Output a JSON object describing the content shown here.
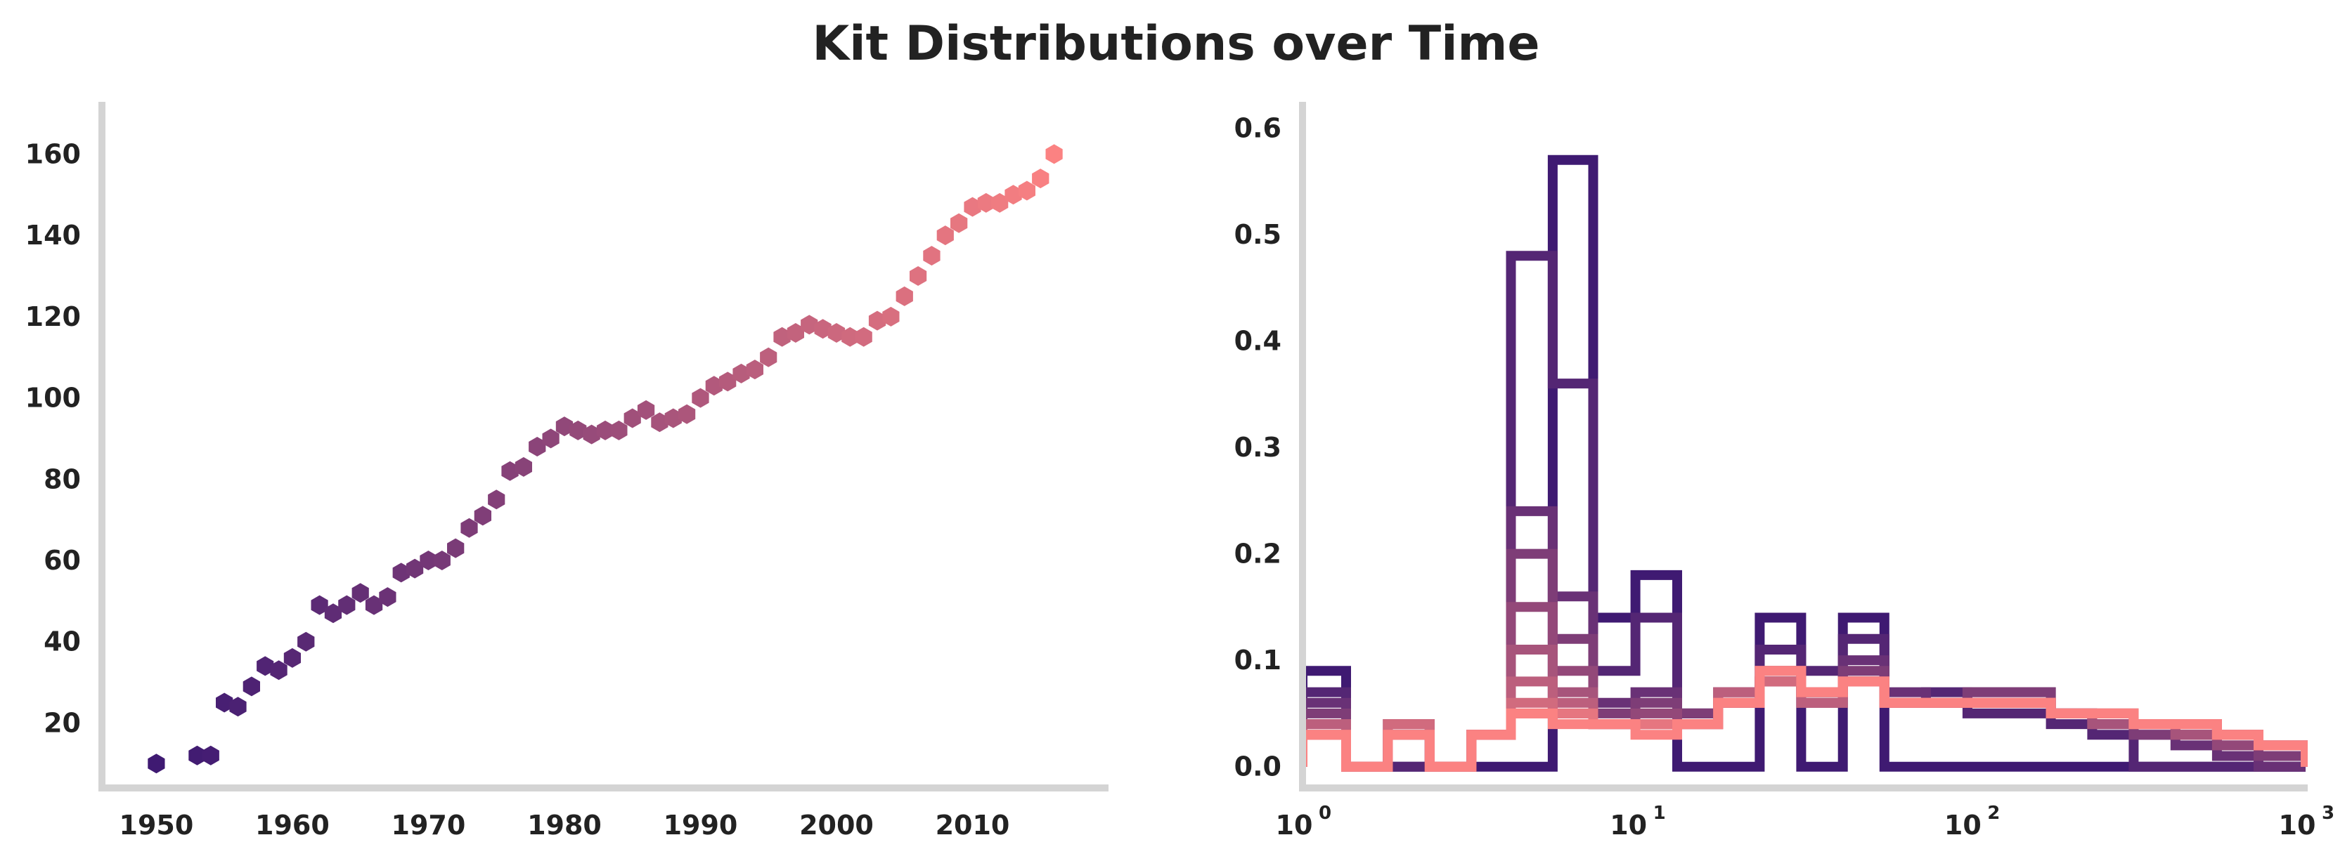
{
  "figure": {
    "title": "Kit Distributions over Time"
  },
  "colors": {
    "axis": "#d4d4d4",
    "text": "#222222",
    "start": "#3f1a72",
    "end": "#fb8282"
  },
  "chart_data": [
    {
      "type": "scatter",
      "title": "",
      "xlabel": "",
      "ylabel": "",
      "marker": "hexagon",
      "color_map": "time (purple to salmon)",
      "xlim": [
        1946,
        2020
      ],
      "ylim": [
        4,
        172
      ],
      "xticks": [
        1950,
        1960,
        1970,
        1980,
        1990,
        2000,
        2010
      ],
      "xtick_labels": [
        "1950",
        "1960",
        "1970",
        "1980",
        "1990",
        "2000",
        "2010"
      ],
      "yticks": [
        20,
        40,
        60,
        80,
        100,
        120,
        140,
        160
      ],
      "ytick_labels": [
        "20",
        "40",
        "60",
        "80",
        "100",
        "120",
        "140",
        "160"
      ],
      "grid": false,
      "legend": "none",
      "points": [
        {
          "x": 1950,
          "y": 10
        },
        {
          "x": 1953,
          "y": 12
        },
        {
          "x": 1954,
          "y": 12
        },
        {
          "x": 1955,
          "y": 25
        },
        {
          "x": 1956,
          "y": 24
        },
        {
          "x": 1957,
          "y": 29
        },
        {
          "x": 1958,
          "y": 34
        },
        {
          "x": 1959,
          "y": 33
        },
        {
          "x": 1960,
          "y": 36
        },
        {
          "x": 1961,
          "y": 40
        },
        {
          "x": 1962,
          "y": 49
        },
        {
          "x": 1963,
          "y": 47
        },
        {
          "x": 1964,
          "y": 49
        },
        {
          "x": 1965,
          "y": 52
        },
        {
          "x": 1966,
          "y": 49
        },
        {
          "x": 1967,
          "y": 51
        },
        {
          "x": 1968,
          "y": 57
        },
        {
          "x": 1969,
          "y": 58
        },
        {
          "x": 1970,
          "y": 60
        },
        {
          "x": 1971,
          "y": 60
        },
        {
          "x": 1972,
          "y": 63
        },
        {
          "x": 1973,
          "y": 68
        },
        {
          "x": 1974,
          "y": 71
        },
        {
          "x": 1975,
          "y": 75
        },
        {
          "x": 1976,
          "y": 82
        },
        {
          "x": 1977,
          "y": 83
        },
        {
          "x": 1978,
          "y": 88
        },
        {
          "x": 1979,
          "y": 90
        },
        {
          "x": 1980,
          "y": 93
        },
        {
          "x": 1981,
          "y": 92
        },
        {
          "x": 1982,
          "y": 91
        },
        {
          "x": 1983,
          "y": 92
        },
        {
          "x": 1984,
          "y": 92
        },
        {
          "x": 1985,
          "y": 95
        },
        {
          "x": 1986,
          "y": 97
        },
        {
          "x": 1987,
          "y": 94
        },
        {
          "x": 1988,
          "y": 95
        },
        {
          "x": 1989,
          "y": 96
        },
        {
          "x": 1990,
          "y": 100
        },
        {
          "x": 1991,
          "y": 103
        },
        {
          "x": 1992,
          "y": 104
        },
        {
          "x": 1993,
          "y": 106
        },
        {
          "x": 1994,
          "y": 107
        },
        {
          "x": 1995,
          "y": 110
        },
        {
          "x": 1996,
          "y": 115
        },
        {
          "x": 1997,
          "y": 116
        },
        {
          "x": 1998,
          "y": 118
        },
        {
          "x": 1999,
          "y": 117
        },
        {
          "x": 2000,
          "y": 116
        },
        {
          "x": 2001,
          "y": 115
        },
        {
          "x": 2002,
          "y": 115
        },
        {
          "x": 2003,
          "y": 119
        },
        {
          "x": 2004,
          "y": 120
        },
        {
          "x": 2005,
          "y": 125
        },
        {
          "x": 2006,
          "y": 130
        },
        {
          "x": 2007,
          "y": 135
        },
        {
          "x": 2008,
          "y": 140
        },
        {
          "x": 2009,
          "y": 143
        },
        {
          "x": 2010,
          "y": 147
        },
        {
          "x": 2011,
          "y": 148
        },
        {
          "x": 2012,
          "y": 148
        },
        {
          "x": 2013,
          "y": 150
        },
        {
          "x": 2014,
          "y": 151
        },
        {
          "x": 2015,
          "y": 154
        },
        {
          "x": 2016,
          "y": 160
        }
      ]
    },
    {
      "type": "line",
      "subtype": "step-histogram",
      "title": "",
      "xlabel": "",
      "ylabel": "",
      "xscale": "log",
      "xlim": [
        1,
        1000
      ],
      "ylim": [
        -0.02,
        0.62
      ],
      "xticks": [
        1,
        10,
        100,
        1000
      ],
      "xtick_labels": [
        {
          "base": "10",
          "exp": "0"
        },
        {
          "base": "10",
          "exp": "1"
        },
        {
          "base": "10",
          "exp": "2"
        },
        {
          "base": "10",
          "exp": "3"
        }
      ],
      "yticks": [
        0.0,
        0.1,
        0.2,
        0.3,
        0.4,
        0.5,
        0.6
      ],
      "ytick_labels": [
        "0.0",
        "0.1",
        "0.2",
        "0.3",
        "0.4",
        "0.5",
        "0.6"
      ],
      "grid": false,
      "legend": "none",
      "bin_edges": [
        1,
        1.35,
        1.8,
        2.4,
        3.2,
        4.2,
        5.6,
        7.4,
        9.9,
        13.2,
        17.5,
        23.3,
        31,
        41.3,
        55,
        73.2,
        97.4,
        130,
        173,
        230,
        306,
        408,
        543,
        723,
        1000
      ],
      "series": [
        {
          "values": [
            0.09,
            0,
            0,
            0,
            0,
            0,
            0.57,
            0.14,
            0.18,
            0,
            0,
            0.14,
            0,
            0.14,
            0,
            0,
            0,
            0,
            0,
            0,
            0,
            0,
            0,
            0
          ]
        },
        {
          "values": [
            0.07,
            0,
            0,
            0,
            0.03,
            0.48,
            0.36,
            0.09,
            0.14,
            0.05,
            0.06,
            0.11,
            0.09,
            0.12,
            0.06,
            0.07,
            0.05,
            0.05,
            0.04,
            0.03,
            0,
            0,
            0,
            0
          ]
        },
        {
          "values": [
            0.06,
            0,
            0.03,
            0,
            0.03,
            0.24,
            0.16,
            0.06,
            0.07,
            0.05,
            0.06,
            0.09,
            0.07,
            0.1,
            0.07,
            0.06,
            0.07,
            0.07,
            0.05,
            0.04,
            0.03,
            0.02,
            0.01,
            0
          ]
        },
        {
          "values": [
            0.05,
            0,
            0.04,
            0,
            0.03,
            0.2,
            0.12,
            0.05,
            0.06,
            0.05,
            0.07,
            0.08,
            0.07,
            0.09,
            0.06,
            0.06,
            0.07,
            0.07,
            0.05,
            0.04,
            0.03,
            0.03,
            0.02,
            0.01
          ]
        },
        {
          "values": [
            0.04,
            0,
            0.04,
            0,
            0.03,
            0.15,
            0.09,
            0.04,
            0.05,
            0.04,
            0.07,
            0.08,
            0.06,
            0.08,
            0.06,
            0.06,
            0.06,
            0.06,
            0.05,
            0.04,
            0.04,
            0.03,
            0.02,
            0.02
          ]
        },
        {
          "values": [
            0.04,
            0,
            0.04,
            0,
            0.03,
            0.11,
            0.07,
            0.04,
            0.04,
            0.04,
            0.07,
            0.08,
            0.06,
            0.08,
            0.06,
            0.06,
            0.06,
            0.06,
            0.05,
            0.04,
            0.04,
            0.03,
            0.03,
            0.02
          ]
        },
        {
          "values": [
            0.04,
            0,
            0.04,
            0,
            0.03,
            0.08,
            0.06,
            0.04,
            0.04,
            0.04,
            0.07,
            0.08,
            0.06,
            0.08,
            0.06,
            0.06,
            0.06,
            0.06,
            0.05,
            0.05,
            0.04,
            0.04,
            0.03,
            0.02
          ]
        },
        {
          "values": [
            0.03,
            0,
            0.04,
            0,
            0.03,
            0.06,
            0.05,
            0.04,
            0.04,
            0.04,
            0.06,
            0.08,
            0.07,
            0.08,
            0.06,
            0.06,
            0.06,
            0.06,
            0.05,
            0.05,
            0.04,
            0.04,
            0.03,
            0.02
          ]
        },
        {
          "values": [
            0.03,
            0,
            0.03,
            0,
            0.03,
            0.05,
            0.05,
            0.04,
            0.04,
            0.04,
            0.06,
            0.09,
            0.07,
            0.08,
            0.06,
            0.06,
            0.06,
            0.06,
            0.05,
            0.05,
            0.04,
            0.04,
            0.03,
            0.02
          ]
        },
        {
          "values": [
            0.03,
            0,
            0.03,
            0,
            0.03,
            0.05,
            0.04,
            0.04,
            0.03,
            0.04,
            0.06,
            0.09,
            0.07,
            0.08,
            0.06,
            0.06,
            0.06,
            0.06,
            0.05,
            0.05,
            0.04,
            0.04,
            0.03,
            0.02
          ]
        }
      ]
    }
  ]
}
